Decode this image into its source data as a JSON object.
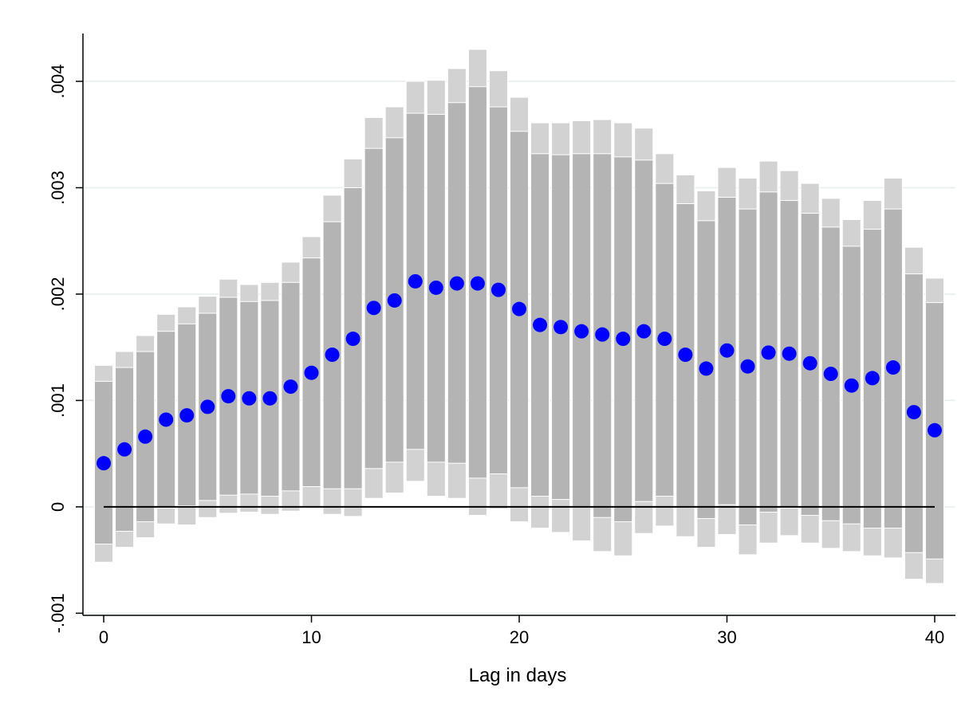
{
  "chart_data": {
    "type": "scatter",
    "title": "",
    "xlabel": "Lag in days",
    "ylabel": "",
    "xlim": [
      -1,
      41
    ],
    "ylim": [
      -0.00102,
      0.00445
    ],
    "x_ticks": [
      0,
      10,
      20,
      30,
      40
    ],
    "x_tick_labels": [
      "0",
      "10",
      "20",
      "30",
      "40"
    ],
    "y_ticks": [
      -0.001,
      0,
      0.001,
      0.002,
      0.003,
      0.004
    ],
    "y_tick_labels": [
      "-.001",
      "0",
      ".001",
      ".002",
      ".003",
      ".004"
    ],
    "grid": true,
    "reference_line_y": 0,
    "colors": {
      "point": "#0000ff",
      "inner_ci": "#b4b4b4",
      "outer_ci": "#d2d2d2",
      "grid": "#e6eeee",
      "reference_line": "#000000"
    },
    "x": [
      0,
      1,
      2,
      3,
      4,
      5,
      6,
      7,
      8,
      9,
      10,
      11,
      12,
      13,
      14,
      15,
      16,
      17,
      18,
      19,
      20,
      21,
      22,
      23,
      24,
      25,
      26,
      27,
      28,
      29,
      30,
      31,
      32,
      33,
      34,
      35,
      36,
      37,
      38,
      39,
      40
    ],
    "estimate": [
      0.00041,
      0.00054,
      0.00066,
      0.00082,
      0.00086,
      0.00094,
      0.00104,
      0.00102,
      0.00102,
      0.00113,
      0.00126,
      0.00143,
      0.00158,
      0.00187,
      0.00194,
      0.00212,
      0.00206,
      0.0021,
      0.0021,
      0.00204,
      0.00186,
      0.00171,
      0.00169,
      0.00165,
      0.00162,
      0.00158,
      0.00165,
      0.00158,
      0.00143,
      0.0013,
      0.00147,
      0.00132,
      0.00145,
      0.00144,
      0.00135,
      0.00125,
      0.00114,
      0.00121,
      0.00131,
      0.00089,
      0.00072
    ],
    "inner_ci_upper": [
      0.00118,
      0.00131,
      0.00146,
      0.00165,
      0.00172,
      0.00182,
      0.00197,
      0.00193,
      0.00194,
      0.00211,
      0.00234,
      0.00268,
      0.003,
      0.00337,
      0.00347,
      0.0037,
      0.00369,
      0.0038,
      0.00395,
      0.00376,
      0.00353,
      0.00332,
      0.00331,
      0.00332,
      0.00332,
      0.00329,
      0.00326,
      0.00304,
      0.00285,
      0.00269,
      0.00291,
      0.0028,
      0.00296,
      0.00288,
      0.00276,
      0.00263,
      0.00245,
      0.00261,
      0.0028,
      0.00219,
      0.00192
    ],
    "inner_ci_lower": [
      -0.00035,
      -0.00023,
      -0.00014,
      -1e-05,
      1e-05,
      6e-05,
      0.00011,
      0.00012,
      0.0001,
      0.00015,
      0.00019,
      0.00017,
      0.00017,
      0.00036,
      0.00042,
      0.00054,
      0.00042,
      0.00041,
      0.00027,
      0.00031,
      0.00018,
      0.0001,
      7e-05,
      0.0,
      -0.0001,
      -0.00014,
      5e-05,
      0.0001,
      0.0,
      -0.00011,
      2e-05,
      -0.00017,
      -5e-05,
      -1e-05,
      -8e-05,
      -0.00013,
      -0.00016,
      -0.0002,
      -0.0002,
      -0.00043,
      -0.00049
    ],
    "outer_ci_upper": [
      0.00133,
      0.00146,
      0.00161,
      0.00181,
      0.00188,
      0.00198,
      0.00214,
      0.00209,
      0.00211,
      0.0023,
      0.00254,
      0.00293,
      0.00327,
      0.00366,
      0.00376,
      0.004,
      0.00401,
      0.00412,
      0.0043,
      0.0041,
      0.00385,
      0.00361,
      0.00361,
      0.00363,
      0.00364,
      0.00361,
      0.00356,
      0.00332,
      0.00312,
      0.00297,
      0.00319,
      0.00309,
      0.00325,
      0.00316,
      0.00304,
      0.0029,
      0.0027,
      0.00288,
      0.00309,
      0.00244,
      0.00215
    ],
    "outer_ci_lower": [
      -0.00052,
      -0.00038,
      -0.00029,
      -0.00016,
      -0.00017,
      -0.0001,
      -6e-05,
      -5e-05,
      -7e-05,
      -4e-05,
      -1e-05,
      -7e-05,
      -9e-05,
      8e-05,
      0.00013,
      0.00024,
      0.0001,
      8e-05,
      -8e-05,
      -2e-05,
      -0.00014,
      -0.0002,
      -0.00024,
      -0.00032,
      -0.00042,
      -0.00046,
      -0.00025,
      -0.00018,
      -0.00028,
      -0.00038,
      -0.00026,
      -0.00045,
      -0.00034,
      -0.00027,
      -0.00034,
      -0.00039,
      -0.00042,
      -0.00046,
      -0.00048,
      -0.00068,
      -0.00072
    ]
  }
}
